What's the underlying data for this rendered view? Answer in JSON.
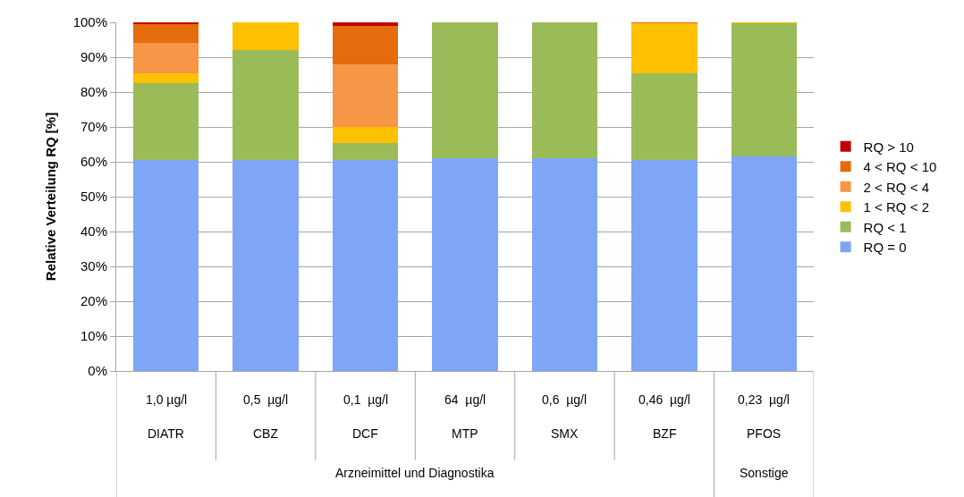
{
  "chart_data": {
    "type": "bar",
    "stacked": true,
    "ylabel": "Relative Verteilung RQ [%]",
    "categories": [
      "1,0 µg/l\nDIATR",
      "0,5  µg/l\nCBZ",
      "0,1  µg/l\nDCF",
      "64  µg/l\nMTP",
      "0,6  µg/l\nSMX",
      "0,46  µg/l\nBZF",
      "0,23  µg/l\nPFOS"
    ],
    "series": [
      {
        "name": "RQ = 0",
        "color": "#7fa6f6",
        "values": [
          60.5,
          60.5,
          60.5,
          61,
          61,
          60.5,
          61.5
        ]
      },
      {
        "name": "RQ < 1",
        "color": "#9bbb59",
        "values": [
          22,
          31.5,
          5,
          39,
          39,
          25,
          38.3
        ]
      },
      {
        "name": "1 < RQ < 2",
        "color": "#ffc000",
        "values": [
          3,
          8,
          4.5,
          0,
          0,
          14.3,
          0.2
        ]
      },
      {
        "name": "2 < RQ < 4",
        "color": "#f79646",
        "values": [
          8.5,
          0,
          18,
          0,
          0,
          0,
          0
        ]
      },
      {
        "name": "4 < RQ < 10",
        "color": "#e46c0a",
        "values": [
          5.5,
          0,
          11,
          0,
          0,
          0.2,
          0
        ]
      },
      {
        "name": "RQ > 10",
        "color": "#c00000",
        "values": [
          0.5,
          0,
          1,
          0,
          0,
          0,
          0
        ]
      }
    ],
    "ylim": [
      0,
      100
    ],
    "yticks": [
      {
        "value": 0,
        "label": "0%"
      },
      {
        "value": 10,
        "label": "10%"
      },
      {
        "value": 20,
        "label": "20%"
      },
      {
        "value": 30,
        "label": "30%"
      },
      {
        "value": 40,
        "label": "40%"
      },
      {
        "value": 50,
        "label": "50%"
      },
      {
        "value": 60,
        "label": "60%"
      },
      {
        "value": 70,
        "label": "70%"
      },
      {
        "value": 80,
        "label": "80%"
      },
      {
        "value": 90,
        "label": "90%"
      },
      {
        "value": 100,
        "label": "100%"
      }
    ],
    "grid": "y",
    "legend": "right",
    "annotations": [
      "Arzneimittel und Diagnostika",
      "Sonstige"
    ]
  }
}
